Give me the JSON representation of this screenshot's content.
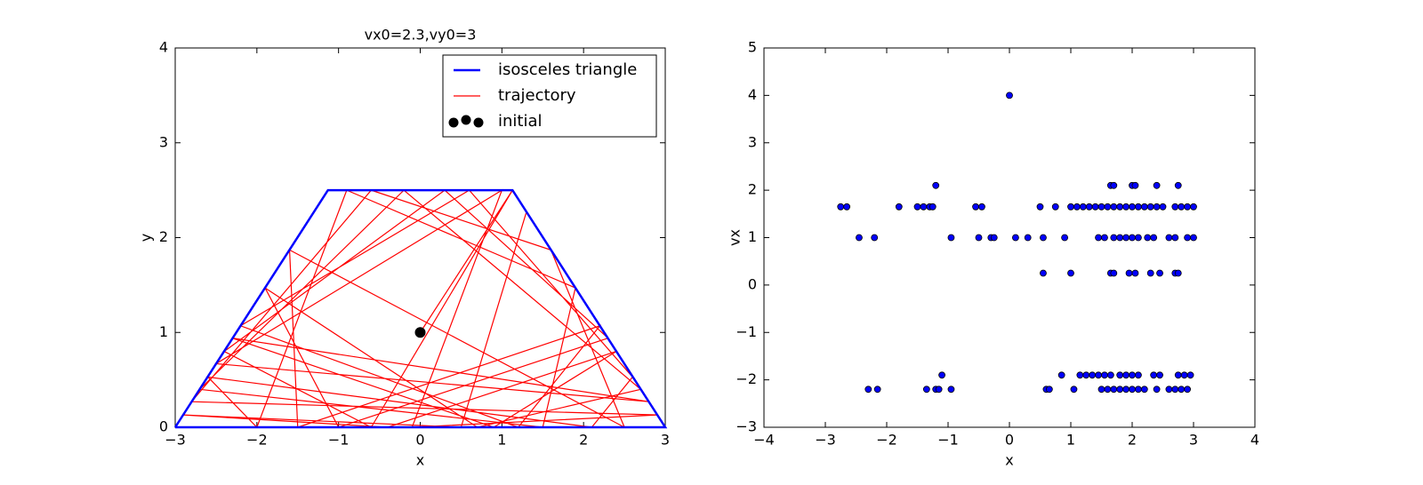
{
  "chart_data": [
    {
      "type": "line",
      "title": "vx0=2.3,vy0=3",
      "xlabel": "x",
      "ylabel": "y",
      "xlim": [
        -3,
        3
      ],
      "ylim": [
        0,
        4
      ],
      "xticks": [
        {
          "value": -3,
          "label": "−3"
        },
        {
          "value": -2,
          "label": "−2"
        },
        {
          "value": -1,
          "label": "−1"
        },
        0,
        1,
        2,
        3
      ],
      "yticks": [
        0,
        1,
        2,
        3,
        4
      ],
      "legend": "upper right",
      "series": [
        {
          "name": "isosceles triangle",
          "color": "#0000ff",
          "style": "line",
          "width": 2.5,
          "x": [
            -3,
            -1.13,
            1.13,
            3,
            -3
          ],
          "values": [
            0,
            2.5,
            2.5,
            0,
            0
          ]
        },
        {
          "name": "trajectory",
          "color": "#ff0000",
          "style": "line",
          "width": 1.2,
          "x": [
            0,
            1.13,
            -0.6,
            -2.4,
            0.3,
            2.3,
            -1.0,
            -1.9,
            0.7,
            2.7,
            -0.2,
            -2.7,
            1.5,
            1.9,
            -0.9,
            -2.0,
            -2.6,
            2.1,
            2.6,
            0.6,
            -2.2,
            1.2,
            2.2,
            -1.5,
            -1.6,
            2.5,
            1.6,
            -0.6,
            -2.8,
            2.9,
            -0.1,
            1.0,
            -2.5,
            2.8,
            -2.3,
            0.9,
            2.4,
            -0.4,
            -2.9,
            0.5,
            1.3
          ],
          "values": [
            1,
            2.5,
            0,
            0.8,
            2.5,
            0.94,
            0,
            1.47,
            0,
            0.4,
            2.5,
            0.4,
            0,
            1.47,
            2.5,
            0,
            0.53,
            0,
            0.53,
            2.5,
            1.07,
            0,
            1.07,
            0,
            1.87,
            0,
            1.87,
            2.5,
            0.27,
            0.13,
            0,
            2.5,
            0.67,
            0.27,
            0.94,
            0,
            0.8,
            0,
            0.13,
            0,
            2.27
          ]
        },
        {
          "name": "initial",
          "color": "#000000",
          "style": "scatter",
          "x": [
            0
          ],
          "values": [
            1
          ]
        }
      ]
    },
    {
      "type": "scatter",
      "xlabel": "x",
      "ylabel": "vx",
      "xlim": [
        -4,
        4
      ],
      "ylim": [
        -3,
        5
      ],
      "xticks": [
        {
          "value": -4,
          "label": "−4"
        },
        {
          "value": -3,
          "label": "−3"
        },
        {
          "value": -2,
          "label": "−2"
        },
        {
          "value": -1,
          "label": "−1"
        },
        0,
        1,
        2,
        3,
        4
      ],
      "yticks": [
        {
          "value": -3,
          "label": "−3"
        },
        {
          "value": -2,
          "label": "−2"
        },
        {
          "value": -1,
          "label": "−1"
        },
        0,
        1,
        2,
        3,
        4,
        5
      ],
      "color": "#0000ff",
      "x": [
        0,
        -1.2,
        1.65,
        1.7,
        2.0,
        2.05,
        2.4,
        2.75,
        -2.75,
        -2.65,
        -1.8,
        -1.5,
        -1.4,
        -1.3,
        -1.25,
        -0.55,
        -0.45,
        0.5,
        0.75,
        1.0,
        1.1,
        1.2,
        1.3,
        1.4,
        1.5,
        1.6,
        1.7,
        1.8,
        1.9,
        2.0,
        2.1,
        2.2,
        2.3,
        2.4,
        2.5,
        2.7,
        2.8,
        2.9,
        3.0,
        -2.45,
        -2.2,
        -0.95,
        -0.5,
        -0.3,
        -0.25,
        0.1,
        0.3,
        0.55,
        0.9,
        1.45,
        1.55,
        1.7,
        1.8,
        1.9,
        2.0,
        2.1,
        2.25,
        2.35,
        2.6,
        2.7,
        2.9,
        3.0,
        0.55,
        1.0,
        1.65,
        1.7,
        1.95,
        2.05,
        2.3,
        2.45,
        2.7,
        2.75,
        -1.1,
        0.85,
        1.15,
        1.25,
        1.35,
        1.45,
        1.55,
        1.65,
        1.8,
        1.9,
        2.0,
        2.1,
        2.35,
        2.45,
        2.75,
        2.85,
        2.95,
        -2.3,
        -2.15,
        -1.35,
        -1.2,
        -1.15,
        -0.95,
        0.6,
        0.65,
        1.05,
        1.5,
        1.6,
        1.7,
        1.8,
        1.9,
        2.0,
        2.1,
        2.2,
        2.4,
        2.6,
        2.7,
        2.8,
        2.9
      ],
      "values": [
        4,
        2.1,
        2.1,
        2.1,
        2.1,
        2.1,
        2.1,
        2.1,
        1.65,
        1.65,
        1.65,
        1.65,
        1.65,
        1.65,
        1.65,
        1.65,
        1.65,
        1.65,
        1.65,
        1.65,
        1.65,
        1.65,
        1.65,
        1.65,
        1.65,
        1.65,
        1.65,
        1.65,
        1.65,
        1.65,
        1.65,
        1.65,
        1.65,
        1.65,
        1.65,
        1.65,
        1.65,
        1.65,
        1.65,
        1,
        1,
        1,
        1,
        1,
        1,
        1,
        1,
        1,
        1,
        1,
        1,
        1,
        1,
        1,
        1,
        1,
        1,
        1,
        1,
        1,
        1,
        1,
        0.25,
        0.25,
        0.25,
        0.25,
        0.25,
        0.25,
        0.25,
        0.25,
        0.25,
        0.25,
        -1.9,
        -1.9,
        -1.9,
        -1.9,
        -1.9,
        -1.9,
        -1.9,
        -1.9,
        -1.9,
        -1.9,
        -1.9,
        -1.9,
        -1.9,
        -1.9,
        -1.9,
        -1.9,
        -1.9,
        -2.2,
        -2.2,
        -2.2,
        -2.2,
        -2.2,
        -2.2,
        -2.2,
        -2.2,
        -2.2,
        -2.2,
        -2.2,
        -2.2,
        -2.2,
        -2.2,
        -2.2,
        -2.2,
        -2.2,
        -2.2,
        -2.2,
        -2.2,
        -2.2,
        -2.2
      ]
    }
  ]
}
